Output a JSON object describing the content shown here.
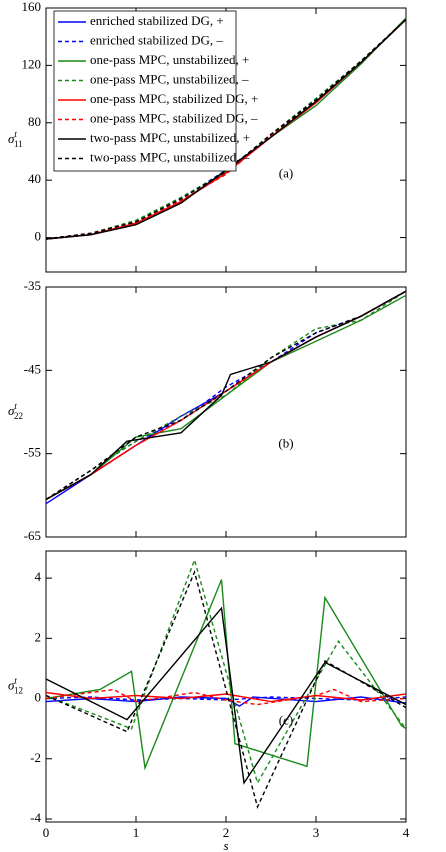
{
  "chart_data": [
    {
      "type": "line",
      "annotation": "(a)",
      "y_label": {
        "symbol": "σ",
        "sup": "t",
        "sub": "11"
      },
      "x": [
        0,
        0.5,
        1,
        1.5,
        2,
        2.5,
        3,
        3.5,
        4
      ],
      "xlim": [
        0,
        4
      ],
      "xticks": [
        0,
        1,
        2,
        3,
        4
      ],
      "xtick_labels": false,
      "ylim": [
        -24,
        160
      ],
      "yticks": [
        0,
        40,
        80,
        120,
        160
      ],
      "legend": "upper left",
      "series": [
        {
          "name": "enriched stabilized DG, +",
          "color": "#0000ff",
          "dash": false,
          "values": [
            -1,
            2,
            10,
            25,
            45,
            70,
            94,
            122,
            152
          ]
        },
        {
          "name": "enriched stabilized DG, –",
          "color": "#0000ff",
          "dash": true,
          "values": [
            -1,
            3,
            11,
            27,
            47,
            71,
            96,
            123,
            152
          ]
        },
        {
          "name": "one-pass MPC, unstabilized, +",
          "color": "#1a8a1a",
          "dash": false,
          "values": [
            -1,
            2,
            10,
            25,
            46,
            70,
            92,
            121,
            153
          ]
        },
        {
          "name": "one-pass MPC, unstabilized, –",
          "color": "#1a8a1a",
          "dash": true,
          "values": [
            -1,
            3,
            12,
            28,
            46,
            72,
            97,
            123,
            152
          ]
        },
        {
          "name": "one-pass MPC, stabilized DG, +",
          "color": "#ff0000",
          "dash": false,
          "values": [
            -1,
            2,
            10,
            25,
            45,
            70,
            94,
            122,
            152
          ]
        },
        {
          "name": "one-pass MPC, stabilized DG, –",
          "color": "#ff0000",
          "dash": true,
          "values": [
            -1,
            3,
            11,
            26,
            44,
            71,
            95,
            122,
            152
          ]
        },
        {
          "name": "two-pass MPC, unstabilized, +",
          "color": "#000000",
          "dash": false,
          "values": [
            -1,
            2,
            9,
            24,
            47,
            70,
            95,
            122,
            152
          ]
        },
        {
          "name": "two-pass MPC, unstabilized, –",
          "color": "#000000",
          "dash": true,
          "values": [
            -1,
            3,
            11,
            27,
            46,
            72,
            96,
            123,
            152
          ]
        }
      ]
    },
    {
      "type": "line",
      "annotation": "(b)",
      "y_label": {
        "symbol": "σ",
        "sup": "t",
        "sub": "22"
      },
      "x": [
        0,
        0.5,
        1,
        1.5,
        2,
        2.5,
        3,
        3.5,
        4
      ],
      "xlim": [
        0,
        4
      ],
      "xticks": [
        0,
        1,
        2,
        3,
        4
      ],
      "xtick_labels": false,
      "ylim": [
        -65,
        -35
      ],
      "yticks": [
        -65,
        -55,
        -45,
        -35
      ],
      "series": [
        {
          "color": "#0000ff",
          "dash": false,
          "values": [
            -61,
            -57.5,
            -54,
            -50.5,
            -47.5,
            -44,
            -41,
            -38.5,
            -35.5
          ]
        },
        {
          "color": "#0000ff",
          "dash": true,
          "values": [
            -60.5,
            -57,
            -53.5,
            -51,
            -47,
            -44,
            -40.5,
            -38.5,
            -35.5
          ]
        },
        {
          "color": "#1a8a1a",
          "dash": false,
          "values": [
            -60.5,
            -57.5,
            -53,
            -52,
            -48,
            -44,
            -41.5,
            -39,
            -36
          ]
        },
        {
          "color": "#1a8a1a",
          "dash": true,
          "values": [
            -60.5,
            -57,
            -53.5,
            -50.5,
            -48,
            -43.5,
            -40,
            -39,
            -35.5
          ]
        },
        {
          "color": "#ff0000",
          "dash": false,
          "values": [
            -60.5,
            -57.5,
            -54,
            -51,
            -47.5,
            -44,
            -41,
            -38.5,
            -35.5
          ]
        },
        {
          "color": "#ff0000",
          "dash": true,
          "values": [
            -60.5,
            -57.5,
            -54,
            -51,
            -47.5,
            -44,
            -41,
            -38.5,
            -35.5
          ]
        },
        {
          "color": "#000000",
          "dash": false,
          "x": [
            0,
            0.5,
            0.9,
            1.5,
            1.95,
            2.05,
            2.5,
            3,
            3.5,
            4
          ],
          "values": [
            -60.5,
            -57.5,
            -53.5,
            -52.5,
            -48,
            -45.5,
            -44,
            -41,
            -38.5,
            -35.5
          ]
        },
        {
          "color": "#000000",
          "dash": true,
          "values": [
            -60.5,
            -57,
            -53,
            -51,
            -47.5,
            -43.5,
            -40.5,
            -38.5,
            -35.5
          ]
        }
      ]
    },
    {
      "type": "line",
      "annotation": "(c)",
      "y_label": {
        "symbol": "σ",
        "sup": "t",
        "sub": "12"
      },
      "x_label": "s",
      "x": [
        0,
        0.5,
        1,
        1.5,
        2,
        2.5,
        3,
        3.5,
        4
      ],
      "xlim": [
        0,
        4
      ],
      "xticks": [
        0,
        1,
        2,
        3,
        4
      ],
      "xtick_labels": true,
      "ylim": [
        -4.1,
        4.9
      ],
      "yticks": [
        -4,
        -2,
        0,
        2,
        4
      ],
      "series": [
        {
          "color": "#0000ff",
          "dash": false,
          "x": [
            0,
            0.5,
            1,
            1.5,
            2,
            2.15,
            2.3,
            3,
            3.5,
            4
          ],
          "values": [
            -0.1,
            0,
            -0.1,
            0.05,
            0,
            -0.25,
            0.05,
            -0.1,
            0.05,
            -0.15
          ]
        },
        {
          "color": "#0000ff",
          "dash": true,
          "x": [
            0,
            0.5,
            1,
            1.5,
            2,
            2.5,
            3,
            3.5,
            4
          ],
          "values": [
            0,
            0.05,
            -0.05,
            0,
            -0.05,
            0.05,
            0,
            -0.05,
            0.05
          ]
        },
        {
          "color": "#1a8a1a",
          "dash": false,
          "x": [
            0,
            0.6,
            0.95,
            1.1,
            1.95,
            2.1,
            2.9,
            3.1,
            3.95,
            4
          ],
          "values": [
            0,
            0.3,
            0.9,
            -2.3,
            3.95,
            -1.5,
            -2.25,
            3.35,
            -0.9,
            -1
          ]
        },
        {
          "color": "#1a8a1a",
          "dash": true,
          "x": [
            0,
            0.95,
            1.65,
            2.35,
            3.25,
            4
          ],
          "values": [
            0.1,
            -1,
            4.6,
            -2.8,
            1.9,
            -1
          ]
        },
        {
          "color": "#ff0000",
          "dash": false,
          "x": [
            0,
            0.5,
            1,
            1.5,
            2,
            2.5,
            3,
            3.5,
            4
          ],
          "values": [
            0.2,
            0,
            0.1,
            0,
            0.15,
            -0.1,
            0.1,
            -0.05,
            0.15
          ]
        },
        {
          "color": "#ff0000",
          "dash": true,
          "x": [
            0,
            0.75,
            1,
            1.65,
            2,
            2.35,
            3,
            3.2,
            3.5,
            4
          ],
          "values": [
            0,
            0.3,
            -0.1,
            0.2,
            -0.05,
            -0.2,
            0.1,
            0.3,
            -0.1,
            0
          ]
        },
        {
          "color": "#000000",
          "dash": false,
          "x": [
            0,
            0.9,
            1.95,
            2.2,
            3.1,
            4
          ],
          "values": [
            0.65,
            -0.7,
            3,
            -2.8,
            1.2,
            -0.2
          ]
        },
        {
          "color": "#000000",
          "dash": true,
          "x": [
            0,
            0.9,
            1.65,
            2.35,
            3.1,
            4
          ],
          "values": [
            0.1,
            -1.1,
            4.2,
            -3.6,
            1.25,
            -0.3
          ]
        }
      ]
    }
  ]
}
